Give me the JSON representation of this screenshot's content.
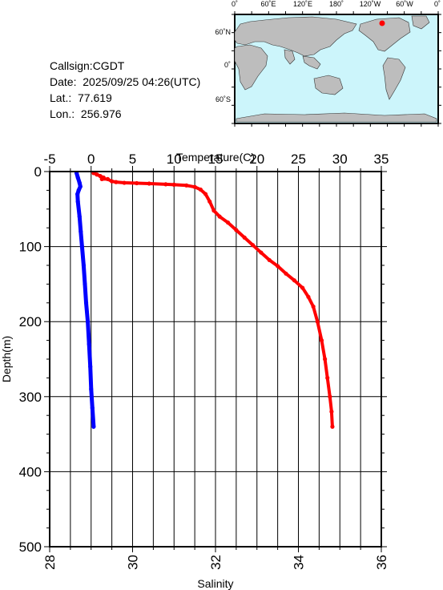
{
  "info": {
    "callsign": "Callsign:CGDT",
    "date": "Date:  2025/09/25 04:26(UTC)",
    "lat": "Lat.:  77.619",
    "lon": "Lon.:  256.976"
  },
  "map": {
    "lon_labels": [
      "0˚",
      "60˚E",
      "120˚E",
      "180˚",
      "120˚W",
      "60˚W",
      "0˚"
    ],
    "lat_labels": [
      "60˚N",
      "0˚",
      "60˚S"
    ],
    "ocean_color": "#ccf5fb",
    "land_color": "#bdbdbd",
    "marker_color": "#ff0000"
  },
  "chart_data": {
    "type": "line",
    "y_axis": {
      "label": "Depth(m)",
      "range": [
        0,
        500
      ],
      "inverted": true,
      "ticks": [
        0,
        100,
        200,
        300,
        400,
        500
      ]
    },
    "top_axis": {
      "label": "Temperature(C)",
      "range": [
        -5,
        35
      ],
      "ticks": [
        -5,
        0,
        5,
        10,
        15,
        20,
        25,
        30,
        35
      ]
    },
    "bottom_axis": {
      "label": "Salinity",
      "range": [
        28,
        36
      ],
      "ticks": [
        28,
        30,
        32,
        34,
        36
      ]
    },
    "grid": true,
    "series": [
      {
        "quantity": "temperature",
        "axis": "top",
        "color": "#ff0000",
        "points": [
          [
            0.3,
            2
          ],
          [
            0.7,
            4
          ],
          [
            1.1,
            6
          ],
          [
            1.5,
            8
          ],
          [
            1.3,
            10
          ],
          [
            2.0,
            10
          ],
          [
            2.5,
            13
          ],
          [
            3.0,
            14
          ],
          [
            4.0,
            15
          ],
          [
            5.5,
            15.5
          ],
          [
            7.0,
            16
          ],
          [
            9.0,
            17
          ],
          [
            10.0,
            17.5
          ],
          [
            11.5,
            18.5
          ],
          [
            12.5,
            20.5
          ],
          [
            13.2,
            24
          ],
          [
            13.8,
            30
          ],
          [
            14.3,
            40
          ],
          [
            14.8,
            52
          ],
          [
            15.5,
            60
          ],
          [
            16.5,
            68
          ],
          [
            17.5,
            78
          ],
          [
            18.5,
            88
          ],
          [
            19.5,
            98
          ],
          [
            20.5,
            108
          ],
          [
            21.5,
            118
          ],
          [
            22.5,
            126
          ],
          [
            23.5,
            136
          ],
          [
            24.5,
            145
          ],
          [
            25.5,
            155
          ],
          [
            26.2,
            167
          ],
          [
            26.8,
            180
          ],
          [
            27.3,
            200
          ],
          [
            27.8,
            225
          ],
          [
            28.2,
            250
          ],
          [
            28.5,
            275
          ],
          [
            28.8,
            300
          ],
          [
            29.0,
            320
          ],
          [
            29.1,
            340
          ]
        ]
      },
      {
        "quantity": "salinity",
        "axis": "bottom",
        "color": "#0000ff",
        "points": [
          [
            28.65,
            2
          ],
          [
            28.68,
            8
          ],
          [
            28.72,
            15
          ],
          [
            28.74,
            20
          ],
          [
            28.7,
            25
          ],
          [
            28.67,
            30
          ],
          [
            28.68,
            40
          ],
          [
            28.72,
            60
          ],
          [
            28.75,
            80
          ],
          [
            28.78,
            100
          ],
          [
            28.82,
            125
          ],
          [
            28.85,
            150
          ],
          [
            28.88,
            175
          ],
          [
            28.92,
            200
          ],
          [
            28.95,
            230
          ],
          [
            28.98,
            260
          ],
          [
            29.0,
            290
          ],
          [
            29.03,
            315
          ],
          [
            29.06,
            340
          ]
        ]
      }
    ]
  }
}
